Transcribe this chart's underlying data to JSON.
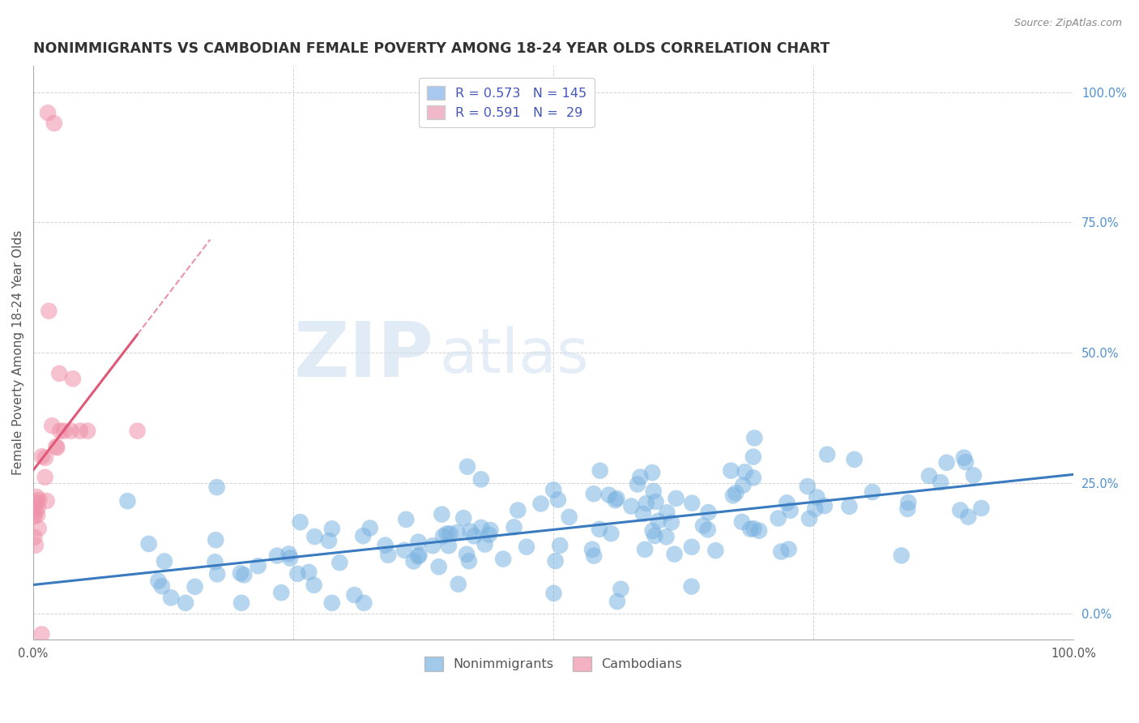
{
  "title": "NONIMMIGRANTS VS CAMBODIAN FEMALE POVERTY AMONG 18-24 YEAR OLDS CORRELATION CHART",
  "source": "Source: ZipAtlas.com",
  "ylabel": "Female Poverty Among 18-24 Year Olds",
  "xlim": [
    0,
    1.0
  ],
  "ylim": [
    -0.05,
    1.05
  ],
  "legend_r1": "R = 0.573   N = 145",
  "legend_r2": "R = 0.591   N =  29",
  "legend_color1": "#a8c8f0",
  "legend_color2": "#f0b8c8",
  "nonimmigrant_color": "#7ab3e0",
  "cambodian_color": "#f090a8",
  "trendline_nonimmigrant_color": "#3a7abf",
  "trendline_cambodian_color": "#e05878",
  "watermark_zip": "ZIP",
  "watermark_atlas": "atlas",
  "background_color": "#ffffff",
  "grid_color": "#c8c8c8",
  "right_axis_color": "#5090d0",
  "title_color": "#333333",
  "source_color": "#888888"
}
